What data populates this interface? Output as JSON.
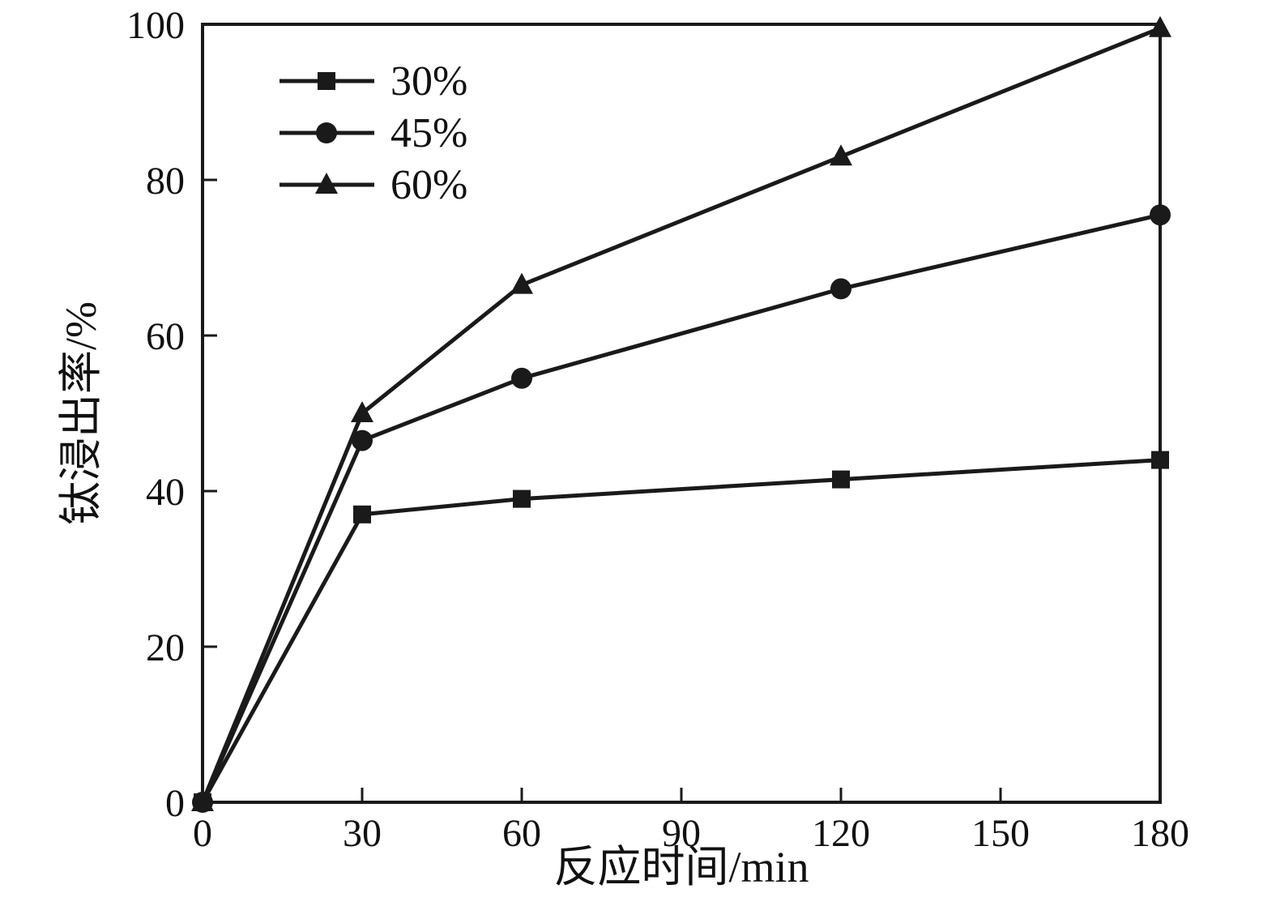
{
  "chart_data": {
    "type": "line",
    "title": "",
    "xlabel": "反应时间/min",
    "ylabel": "钛浸出率/%",
    "xlim": [
      0,
      180
    ],
    "ylim": [
      0,
      100
    ],
    "x_ticks": [
      0,
      30,
      60,
      90,
      120,
      150,
      180
    ],
    "y_ticks": [
      0,
      20,
      40,
      60,
      80,
      100
    ],
    "grid": false,
    "legend_position": "upper-left",
    "color": "#1a1a1a",
    "x": [
      0,
      30,
      60,
      120,
      180
    ],
    "series": [
      {
        "name": "30%",
        "marker": "square",
        "values": [
          0,
          37,
          39,
          41.5,
          44
        ]
      },
      {
        "name": "45%",
        "marker": "circle",
        "values": [
          0,
          46.5,
          54.5,
          66,
          75.5
        ]
      },
      {
        "name": "60%",
        "marker": "triangle",
        "values": [
          0,
          50,
          66.5,
          83,
          99.5
        ]
      }
    ]
  }
}
